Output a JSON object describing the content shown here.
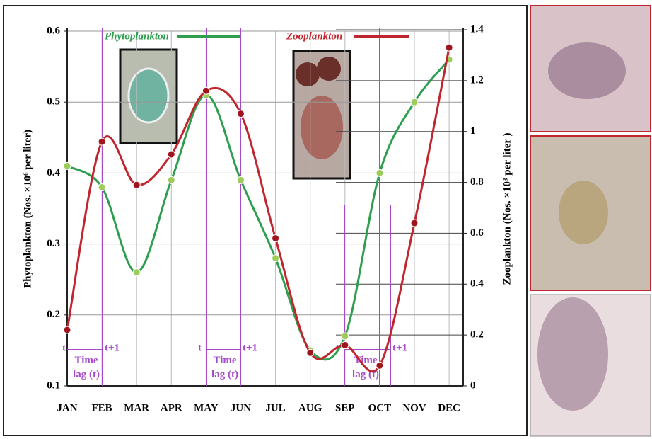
{
  "chart_data": {
    "type": "line",
    "categories": [
      "JAN",
      "FEB",
      "MAR",
      "APR",
      "MAY",
      "JUN",
      "JUL",
      "AUG",
      "SEP",
      "OCT",
      "NOV",
      "DEC"
    ],
    "series": [
      {
        "name": "Phytoplankton",
        "color": "#2e9e4f",
        "values": [
          0.41,
          0.38,
          0.26,
          0.39,
          0.51,
          0.39,
          0.28,
          0.15,
          0.17,
          0.4,
          0.5,
          0.56
        ]
      },
      {
        "name": "Zooplankton",
        "color": "#c0262d",
        "axis": "y2",
        "values": [
          0.22,
          0.96,
          0.79,
          0.91,
          1.16,
          1.07,
          0.58,
          0.13,
          0.16,
          0.08,
          0.64,
          1.33
        ]
      }
    ],
    "y_label": "Phytoplankton (Nos. ×10⁶ per liter)",
    "y2_label": "Zooplankton (Nos. ×10³ per liter )",
    "ylim": [
      0.1,
      0.6
    ],
    "yticks": [
      0.1,
      0.2,
      0.3,
      0.4,
      0.5,
      0.6
    ],
    "y2lim": [
      0,
      1.4
    ],
    "y2ticks": [
      0,
      0.2,
      0.4,
      0.6,
      0.8,
      1.0,
      1.2,
      1.4
    ],
    "grid": true,
    "annotations": [
      "t",
      "t+1",
      "Time lag (t)",
      "t",
      "t+1",
      "Time lag (t)",
      "t",
      "t+1",
      "Time lag (t)"
    ]
  }
}
